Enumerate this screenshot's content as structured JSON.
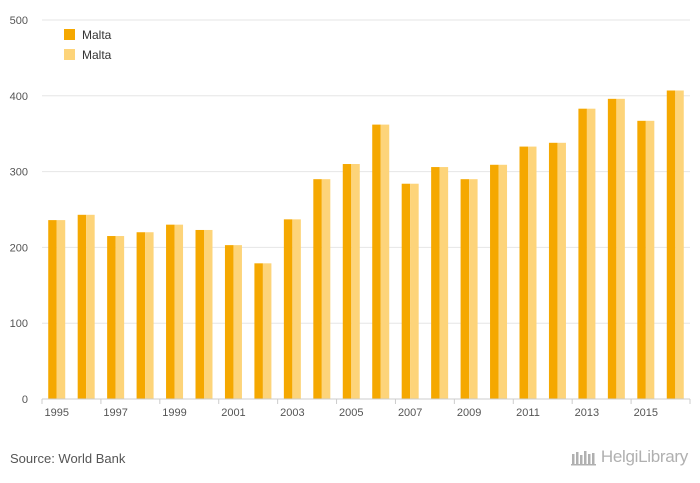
{
  "chart_data": {
    "type": "bar",
    "title": "",
    "xlabel": "",
    "ylabel": "",
    "ylim": [
      0,
      500
    ],
    "yticks": [
      0,
      100,
      200,
      300,
      400,
      500
    ],
    "grid": true,
    "legend_position": "top-left",
    "categories": [
      "1995",
      "1996",
      "1997",
      "1998",
      "1999",
      "2000",
      "2001",
      "2002",
      "2003",
      "2004",
      "2005",
      "2006",
      "2007",
      "2008",
      "2009",
      "2010",
      "2011",
      "2012",
      "2013",
      "2014",
      "2015",
      "2016"
    ],
    "x_tick_labels": [
      "1995",
      "1997",
      "1999",
      "2001",
      "2003",
      "2005",
      "2007",
      "2009",
      "2011",
      "2013",
      "2015"
    ],
    "series": [
      {
        "name": "Malta",
        "color": "#f5a800",
        "values": [
          236,
          243,
          215,
          220,
          230,
          223,
          203,
          179,
          237,
          290,
          310,
          362,
          284,
          306,
          290,
          309,
          333,
          338,
          383,
          396,
          367,
          407
        ]
      },
      {
        "name": "Malta",
        "color": "#fdd47a",
        "values": [
          236,
          243,
          215,
          220,
          230,
          223,
          203,
          179,
          237,
          290,
          310,
          362,
          284,
          306,
          290,
          309,
          333,
          338,
          383,
          396,
          367,
          407
        ]
      }
    ]
  },
  "footer": {
    "source": "Source: World Bank",
    "brand": "HelgiLibrary",
    "brand_icon": "library-logo-icon"
  },
  "colors": {
    "grid": "#e6e6e6",
    "axis": "#cccccc"
  }
}
